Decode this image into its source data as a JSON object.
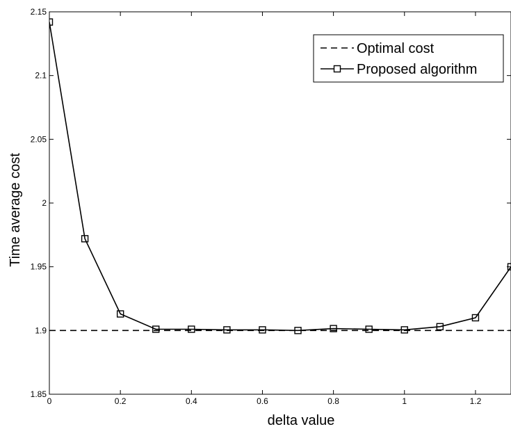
{
  "chart_data": {
    "type": "line",
    "xlabel": "delta value",
    "ylabel": "Time average cost",
    "xlim": [
      0,
      1.3
    ],
    "ylim": [
      1.85,
      2.15
    ],
    "xticks": [
      0,
      0.2,
      0.4,
      0.6,
      0.8,
      1,
      1.2
    ],
    "xtick_labels": [
      "0",
      "0.2",
      "0.4",
      "0.6",
      "0.8",
      "1",
      "1.2"
    ],
    "yticks": [
      1.85,
      1.9,
      1.95,
      2,
      2.05,
      2.1,
      2.15
    ],
    "ytick_labels": [
      "1.85",
      "1.9",
      "1.95",
      "2",
      "2.05",
      "2.1",
      "2.15"
    ],
    "grid": false,
    "legend_position": "top-right",
    "series": [
      {
        "name": "Optimal cost",
        "style": "dashed",
        "color": "#000000",
        "x": [
          0,
          1.3
        ],
        "y": [
          1.9,
          1.9
        ]
      },
      {
        "name": "Proposed algorithm",
        "style": "solid",
        "marker": "square",
        "color": "#000000",
        "x": [
          0,
          0.1,
          0.2,
          0.3,
          0.4,
          0.5,
          0.6,
          0.7,
          0.8,
          0.9,
          1.0,
          1.1,
          1.2,
          1.3
        ],
        "y": [
          2.142,
          1.972,
          1.913,
          1.901,
          1.901,
          1.9005,
          1.9005,
          1.9,
          1.9015,
          1.901,
          1.9005,
          1.903,
          1.91,
          1.95
        ]
      }
    ]
  }
}
